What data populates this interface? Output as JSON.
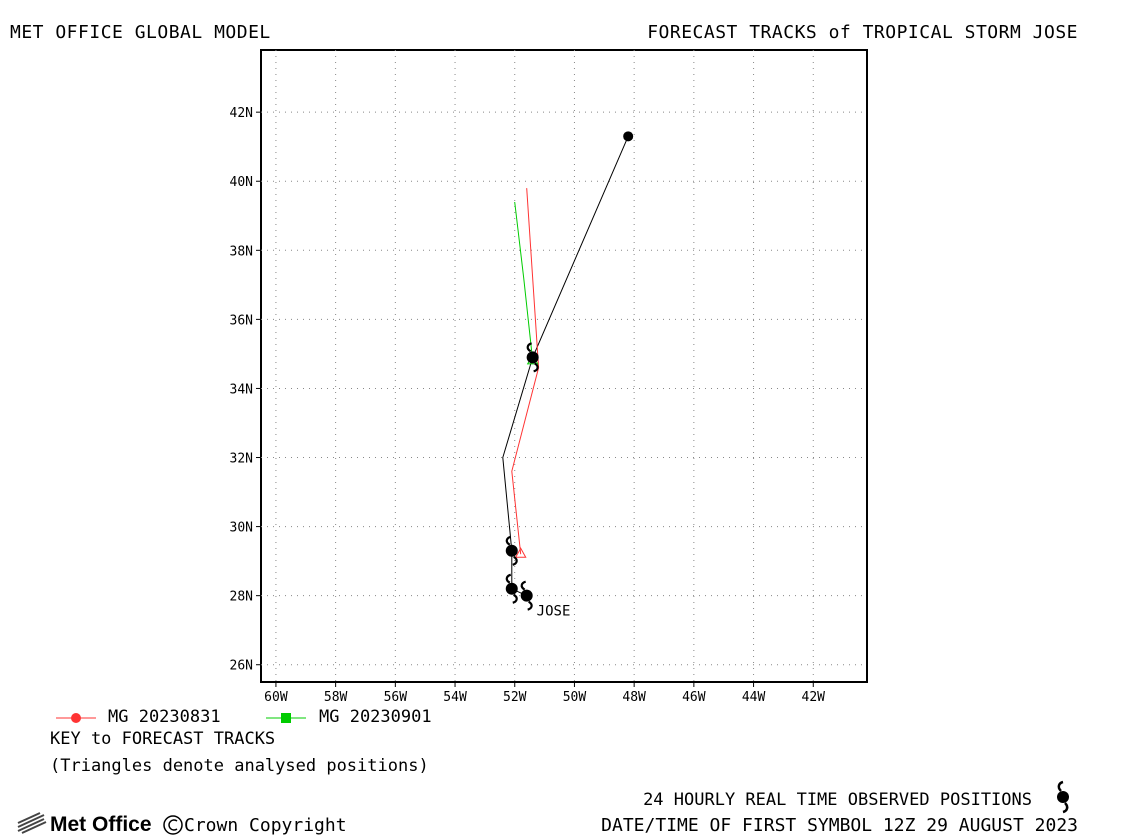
{
  "header": {
    "model": "MET OFFICE GLOBAL MODEL",
    "title": "FORECAST TRACKS of TROPICAL STORM JOSE"
  },
  "map": {
    "lon_range": [
      -60.5,
      -40.2
    ],
    "lat_range": [
      25.5,
      43.8
    ],
    "x_ticks": [
      {
        "value": -60,
        "label": "60W"
      },
      {
        "value": -58,
        "label": "58W"
      },
      {
        "value": -56,
        "label": "56W"
      },
      {
        "value": -54,
        "label": "54W"
      },
      {
        "value": -52,
        "label": "52W"
      },
      {
        "value": -50,
        "label": "50W"
      },
      {
        "value": -48,
        "label": "48W"
      },
      {
        "value": -46,
        "label": "46W"
      },
      {
        "value": -44,
        "label": "44W"
      },
      {
        "value": -42,
        "label": "42W"
      }
    ],
    "y_ticks": [
      {
        "value": 26,
        "label": "26N"
      },
      {
        "value": 28,
        "label": "28N"
      },
      {
        "value": 30,
        "label": "30N"
      },
      {
        "value": 32,
        "label": "32N"
      },
      {
        "value": 34,
        "label": "34N"
      },
      {
        "value": 36,
        "label": "36N"
      },
      {
        "value": 38,
        "label": "38N"
      },
      {
        "value": 40,
        "label": "40N"
      },
      {
        "value": 42,
        "label": "42N"
      }
    ],
    "grid": "dotted",
    "storm_label": "JOSE"
  },
  "chart_data": {
    "type": "line",
    "grid": true,
    "series": [
      {
        "name": "observed",
        "color": "#000000",
        "points": [
          [
            -51.6,
            28.0
          ],
          [
            -52.1,
            28.2
          ],
          [
            -52.1,
            29.3
          ],
          [
            -52.4,
            32.0
          ],
          [
            -51.4,
            34.9
          ],
          [
            -48.2,
            41.3
          ]
        ]
      },
      {
        "name": "MG 20230831",
        "color": "#ff3333",
        "points": [
          [
            -51.8,
            29.2
          ],
          [
            -52.1,
            31.6
          ],
          [
            -51.2,
            34.6
          ],
          [
            -51.6,
            39.8
          ]
        ]
      },
      {
        "name": "MG 20230901",
        "color": "#00cc00",
        "points": [
          [
            -51.4,
            34.8
          ],
          [
            -51.7,
            37.2
          ],
          [
            -52.0,
            39.4
          ]
        ]
      }
    ],
    "observed_positions": [
      [
        -51.6,
        28.0
      ],
      [
        -52.1,
        28.2
      ],
      [
        -52.1,
        29.3
      ],
      [
        -51.4,
        34.9
      ]
    ],
    "analysed_positions": [
      {
        "series": "MG 20230831",
        "lon": -51.8,
        "lat": 29.2
      },
      {
        "series": "MG 20230901",
        "lon": -51.4,
        "lat": 34.8
      }
    ]
  },
  "legend": {
    "items": [
      {
        "label": "MG 20230831",
        "color": "#ff3333",
        "marker": "circle"
      },
      {
        "label": "MG 20230901",
        "color": "#00cc00",
        "marker": "square"
      }
    ]
  },
  "key": {
    "title": "KEY to FORECAST TRACKS",
    "note": "(Triangles denote analysed positions)"
  },
  "footer": {
    "observed_label": "24 HOURLY REAL TIME OBSERVED POSITIONS",
    "observed_icon": "hurricane-icon",
    "first_symbol": "DATE/TIME OF FIRST SYMBOL 12Z 29 AUGUST 2023",
    "logo": "Met Office",
    "copyright": "Crown Copyright"
  }
}
